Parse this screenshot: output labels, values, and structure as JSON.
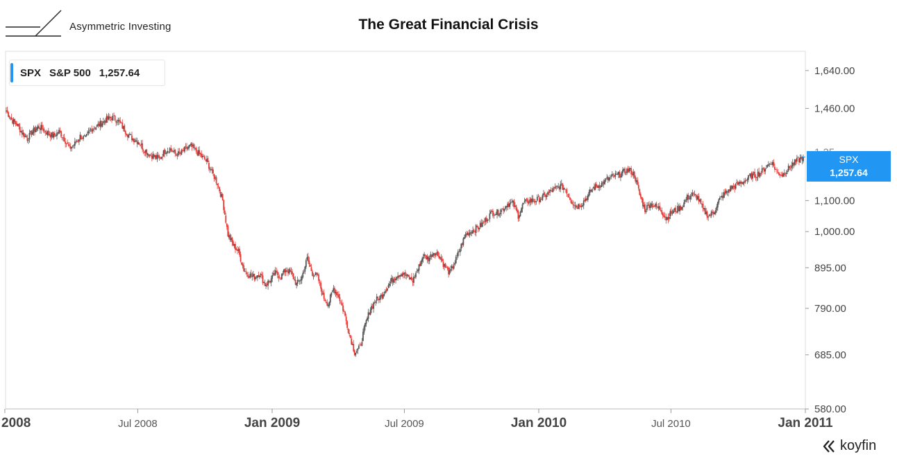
{
  "brand": {
    "name": "Asymmetric Investing",
    "logo_icon": "diagonal-line-logo-icon"
  },
  "header": {
    "title": "The Great Financial Crisis"
  },
  "legend": {
    "ticker": "SPX",
    "name": "S&P 500",
    "value": "1,257.64",
    "accent": "#2196f3"
  },
  "price_tag": {
    "ticker": "SPX",
    "value": "1,257.64",
    "hidden_axis_label": "1,25",
    "color": "#2196f3"
  },
  "footer": {
    "provider": "koyfin",
    "provider_icon": "koyfin-logo-icon"
  },
  "chart_data": {
    "type": "candlestick",
    "title": "The Great Financial Crisis",
    "series_name": "SPX S&P 500",
    "last_value": 1257.64,
    "y_scale": "log",
    "ylim": [
      580,
      1740
    ],
    "y_ticks": [
      580,
      685,
      790,
      895,
      1000,
      1100,
      1460,
      1640
    ],
    "y_tick_labels": [
      "580.00",
      "685.00",
      "790.00",
      "895.00",
      "1,000.00",
      "1,100.00",
      "1,460.00",
      "1,640.00"
    ],
    "x_range": [
      "2008-01-02",
      "2011-01-01"
    ],
    "x_ticks": [
      {
        "date": "2008-01-01",
        "label": "2008",
        "major": true
      },
      {
        "date": "2008-07-01",
        "label": "Jul 2008",
        "major": false
      },
      {
        "date": "2009-01-01",
        "label": "Jan 2009",
        "major": true
      },
      {
        "date": "2009-07-01",
        "label": "Jul 2009",
        "major": false
      },
      {
        "date": "2010-01-01",
        "label": "Jan 2010",
        "major": true
      },
      {
        "date": "2010-07-01",
        "label": "Jul 2010",
        "major": false
      },
      {
        "date": "2011-01-01",
        "label": "Jan 2011",
        "major": true
      }
    ],
    "up_color": "#555555",
    "down_color": "#e53935",
    "closes_weekly": [
      1450,
      1410,
      1390,
      1355,
      1330,
      1360,
      1380,
      1370,
      1350,
      1340,
      1360,
      1330,
      1290,
      1310,
      1340,
      1330,
      1370,
      1380,
      1395,
      1410,
      1420,
      1410,
      1380,
      1350,
      1330,
      1320,
      1290,
      1270,
      1260,
      1250,
      1280,
      1290,
      1270,
      1270,
      1290,
      1300,
      1280,
      1260,
      1240,
      1200,
      1160,
      1100,
      990,
      960,
      940,
      890,
      875,
      870,
      880,
      850,
      860,
      880,
      870,
      890,
      880,
      850,
      870,
      920,
      880,
      870,
      820,
      800,
      840,
      820,
      780,
      730,
      690,
      700,
      750,
      790,
      810,
      820,
      840,
      860,
      875,
      880,
      870,
      860,
      890,
      930,
      920,
      940,
      930,
      900,
      880,
      910,
      950,
      990,
      1000,
      1010,
      1020,
      1040,
      1060,
      1060,
      1070,
      1090,
      1090,
      1050,
      1090,
      1100,
      1100,
      1105,
      1115,
      1130,
      1140,
      1150,
      1140,
      1100,
      1080,
      1090,
      1110,
      1140,
      1150,
      1160,
      1175,
      1185,
      1190,
      1200,
      1210,
      1190,
      1120,
      1070,
      1090,
      1080,
      1070,
      1040,
      1060,
      1070,
      1080,
      1110,
      1120,
      1110,
      1070,
      1050,
      1060,
      1100,
      1120,
      1140,
      1150,
      1160,
      1170,
      1185,
      1190,
      1200,
      1220,
      1240,
      1200,
      1190,
      1210,
      1230,
      1245,
      1257.64
    ]
  }
}
